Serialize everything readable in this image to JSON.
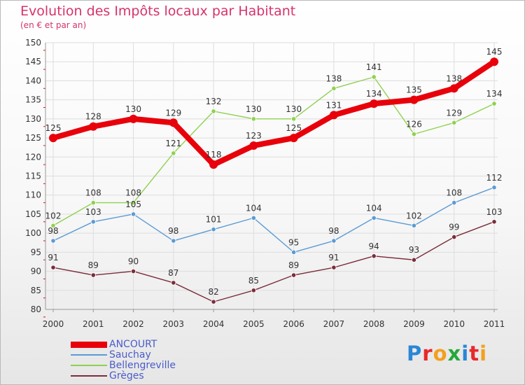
{
  "header": {
    "title": "Evolution des Impôts locaux par Habitant",
    "subtitle": "(en € et par an)"
  },
  "logo": {
    "text": "Proxiti",
    "colors": [
      "#2b86d6",
      "#e8282b",
      "#f2a020",
      "#25a83a",
      "#2b86d6",
      "#e8282b",
      "#f2a020"
    ]
  },
  "colors": {
    "title": "#d6336c",
    "legend_text": "#4a5cc9",
    "grid": "#dddddd"
  },
  "chart_data": {
    "type": "line",
    "title": "Evolution des Impôts locaux par Habitant",
    "subtitle": "(en € et par an)",
    "x": [
      "2000",
      "2001",
      "2002",
      "2003",
      "2004",
      "2005",
      "2006",
      "2007",
      "2008",
      "2009",
      "2010",
      "2011"
    ],
    "ylim": [
      80,
      150
    ],
    "ytick_step": 5,
    "grid": true,
    "legend_position": "bottom-left",
    "series": [
      {
        "name": "ANCOURT",
        "color": "#e8000b",
        "width": "thick",
        "values": [
          125,
          128,
          130,
          129,
          118,
          123,
          125,
          131,
          134,
          135,
          138,
          145
        ]
      },
      {
        "name": "Sauchay",
        "color": "#5b9bd5",
        "width": "thin",
        "values": [
          98,
          103,
          105,
          98,
          101,
          104,
          95,
          98,
          104,
          102,
          108,
          112
        ]
      },
      {
        "name": "Bellengreville",
        "color": "#8fd14f",
        "width": "thin",
        "values": [
          102,
          108,
          108,
          121,
          132,
          130,
          130,
          138,
          141,
          126,
          129,
          134
        ]
      },
      {
        "name": "Grèges",
        "color": "#7b2d3b",
        "width": "thin",
        "values": [
          91,
          89,
          90,
          87,
          82,
          85,
          89,
          91,
          94,
          93,
          99,
          103
        ]
      }
    ]
  }
}
